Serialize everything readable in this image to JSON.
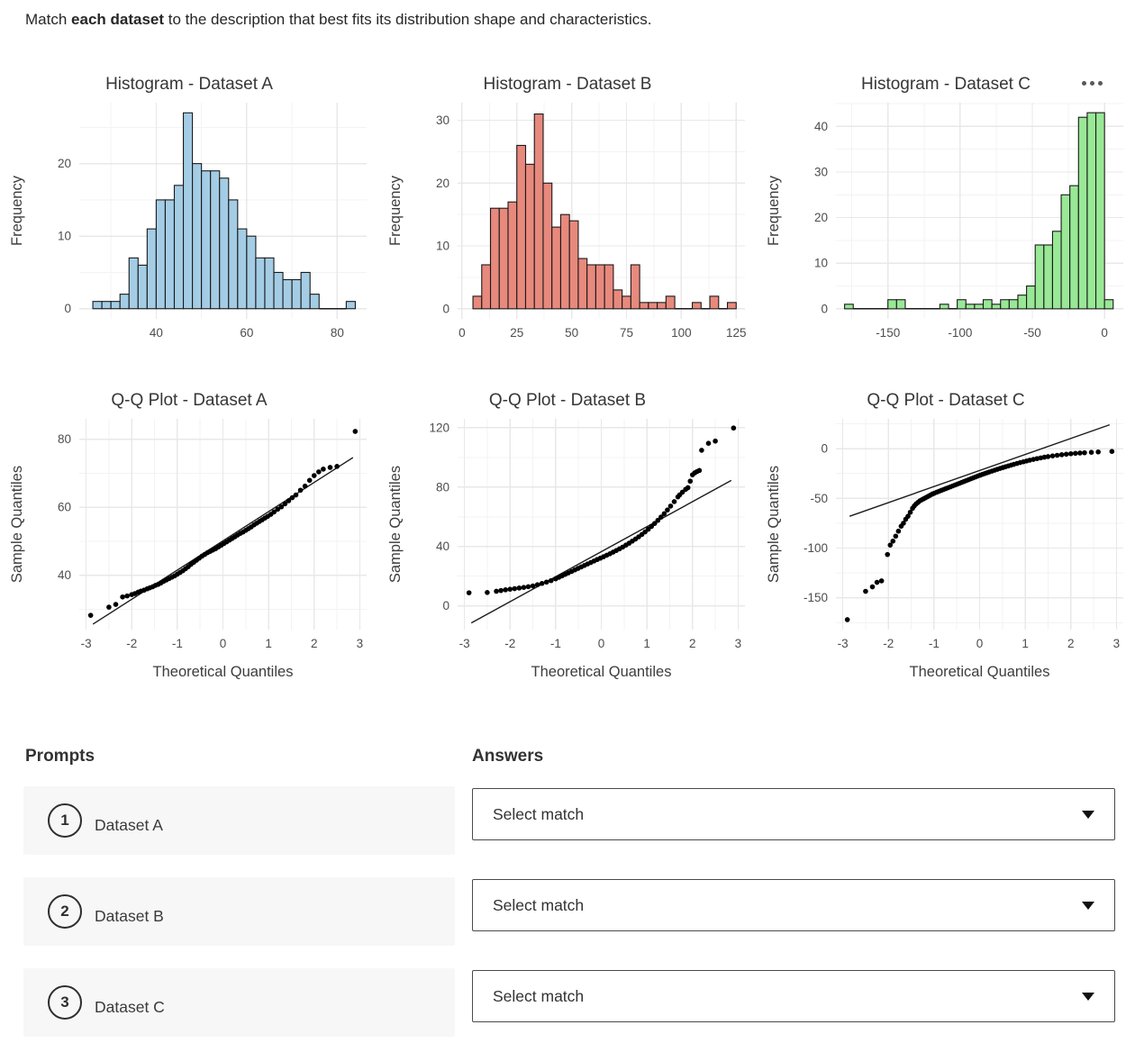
{
  "instruction": {
    "prefix": "Match ",
    "emphasis": "each dataset",
    "suffix": " to the description that best fits its distribution shape and characteristics."
  },
  "icons": {
    "more_options": "ellipsis-dots",
    "dropdown": "caret-down"
  },
  "colors": {
    "dataset_a_fill": "#a4cde5",
    "dataset_b_fill": "#e8897d",
    "dataset_c_fill": "#99e896",
    "bar_border": "#1a1a1a",
    "grid_major": "#e8e8e8",
    "grid_minor": "#f3f3f3",
    "prompt_row_bg": "#f7f7f7"
  },
  "chart_data": [
    {
      "type": "histogram",
      "title": "Histogram - Dataset A",
      "xlabel": "",
      "ylabel": "Frequency",
      "bar_color": "#a4cde5",
      "bin_start": 26,
      "bin_width": 2,
      "counts": [
        1,
        1,
        1,
        2,
        7,
        6,
        11,
        15,
        15,
        17,
        27,
        20,
        19,
        19,
        18,
        15,
        11,
        10,
        7,
        7,
        5,
        4,
        4,
        5,
        2,
        0,
        0,
        0,
        1
      ],
      "xlim": [
        23,
        86.5
      ],
      "ylim": [
        -1.4,
        28.4
      ],
      "xticks": [
        40,
        60,
        80
      ],
      "xminor": [
        30,
        50,
        70
      ],
      "yticks": [
        0,
        10,
        20
      ],
      "yminor": [
        5,
        15,
        25
      ]
    },
    {
      "type": "histogram",
      "title": "Histogram - Dataset B",
      "xlabel": "",
      "ylabel": "Frequency",
      "bar_color": "#e8897d",
      "bin_start": 5,
      "bin_width": 4,
      "counts": [
        2,
        7,
        16,
        16,
        17,
        26,
        23,
        31,
        20,
        13,
        15,
        14,
        8,
        7,
        7,
        7,
        3,
        2,
        7,
        1,
        1,
        1,
        2,
        0,
        0,
        1,
        0,
        2,
        0,
        1
      ],
      "xlim": [
        -2,
        129
      ],
      "ylim": [
        -1.6,
        32.8
      ],
      "xticks": [
        0,
        25,
        50,
        75,
        100,
        125
      ],
      "xminor": [
        12.5,
        37.5,
        62.5,
        87.5,
        112.5
      ],
      "yticks": [
        0,
        10,
        20,
        30
      ],
      "yminor": [
        5,
        15,
        25
      ]
    },
    {
      "type": "histogram",
      "title": "Histogram - Dataset C",
      "xlabel": "",
      "ylabel": "Frequency",
      "bar_color": "#99e896",
      "bin_start": -180,
      "bin_width": 6,
      "counts": [
        1,
        0,
        0,
        0,
        0,
        2,
        2,
        0,
        0,
        0,
        0,
        1,
        0,
        2,
        1,
        1,
        2,
        1,
        2,
        2,
        3,
        5,
        14,
        14,
        17,
        25,
        27,
        42,
        43,
        43,
        2
      ],
      "xlim": [
        -186,
        13
      ],
      "ylim": [
        -2.2,
        45.2
      ],
      "xticks": [
        -150,
        -100,
        -50,
        0
      ],
      "xminor": [
        -175,
        -125,
        -75,
        -25
      ],
      "yticks": [
        0,
        10,
        20,
        30,
        40
      ],
      "yminor": [
        5,
        15,
        25,
        35,
        45
      ]
    },
    {
      "type": "qq",
      "title": "Q-Q Plot - Dataset A",
      "xlabel": "Theoretical Quantiles",
      "ylabel": "Sample Quantiles",
      "xlim": [
        -3.15,
        3.15
      ],
      "ylim": [
        24,
        86
      ],
      "xticks": [
        -3,
        -2,
        -1,
        0,
        1,
        2,
        3
      ],
      "xminor": [
        -2.5,
        -1.5,
        -0.5,
        0.5,
        1.5,
        2.5
      ],
      "yticks": [
        40,
        60,
        80
      ],
      "yminor": [
        30,
        50,
        70
      ],
      "ref_line": [
        [
          -2.85,
          25.6
        ],
        [
          2.85,
          74.6
        ]
      ],
      "points": [
        [
          -2.9,
          28.2
        ],
        [
          -2.5,
          30.6
        ],
        [
          -2.35,
          31.4
        ],
        [
          -2.2,
          33.6
        ],
        [
          -2.1,
          33.9
        ],
        [
          -2.0,
          34.3
        ],
        [
          -1.93,
          34.6
        ],
        [
          -1.86,
          35.0
        ],
        [
          -1.8,
          35.3
        ],
        [
          -1.73,
          35.6
        ],
        [
          -1.66,
          36.0
        ],
        [
          -1.6,
          36.3
        ],
        [
          -1.54,
          36.6
        ],
        [
          -1.48,
          37.0
        ],
        [
          -1.42,
          37.3
        ],
        [
          -1.36,
          37.7
        ],
        [
          -1.3,
          38.2
        ],
        [
          -1.24,
          38.6
        ],
        [
          -1.18,
          39.0
        ],
        [
          -1.12,
          39.4
        ],
        [
          -1.06,
          39.8
        ],
        [
          -1.0,
          40.3
        ],
        [
          -0.94,
          40.8
        ],
        [
          -0.88,
          41.3
        ],
        [
          -0.82,
          41.9
        ],
        [
          -0.76,
          42.5
        ],
        [
          -0.7,
          43.2
        ],
        [
          -0.64,
          43.8
        ],
        [
          -0.58,
          44.4
        ],
        [
          -0.52,
          45.0
        ],
        [
          -0.46,
          45.6
        ],
        [
          -0.4,
          46.1
        ],
        [
          -0.34,
          46.6
        ],
        [
          -0.28,
          47.0
        ],
        [
          -0.22,
          47.4
        ],
        [
          -0.16,
          47.8
        ],
        [
          -0.1,
          48.3
        ],
        [
          -0.04,
          48.8
        ],
        [
          0.02,
          49.3
        ],
        [
          0.08,
          49.8
        ],
        [
          0.14,
          50.3
        ],
        [
          0.2,
          50.8
        ],
        [
          0.26,
          51.3
        ],
        [
          0.32,
          51.8
        ],
        [
          0.38,
          52.3
        ],
        [
          0.44,
          52.7
        ],
        [
          0.5,
          53.2
        ],
        [
          0.56,
          53.7
        ],
        [
          0.62,
          54.2
        ],
        [
          0.68,
          54.8
        ],
        [
          0.74,
          55.3
        ],
        [
          0.8,
          55.8
        ],
        [
          0.86,
          56.3
        ],
        [
          0.92,
          56.8
        ],
        [
          0.98,
          57.3
        ],
        [
          1.05,
          57.9
        ],
        [
          1.12,
          58.6
        ],
        [
          1.2,
          59.4
        ],
        [
          1.28,
          60.1
        ],
        [
          1.36,
          61.0
        ],
        [
          1.44,
          61.9
        ],
        [
          1.52,
          62.8
        ],
        [
          1.6,
          63.6
        ],
        [
          1.7,
          65.0
        ],
        [
          1.8,
          66.2
        ],
        [
          1.9,
          67.9
        ],
        [
          2.0,
          69.3
        ],
        [
          2.1,
          70.4
        ],
        [
          2.2,
          71.2
        ],
        [
          2.35,
          71.7
        ],
        [
          2.5,
          72.0
        ],
        [
          2.9,
          82.3
        ]
      ]
    },
    {
      "type": "qq",
      "title": "Q-Q Plot - Dataset B",
      "xlabel": "Theoretical Quantiles",
      "ylabel": "Sample Quantiles",
      "xlim": [
        -3.15,
        3.15
      ],
      "ylim": [
        -16,
        126
      ],
      "xticks": [
        -3,
        -2,
        -1,
        0,
        1,
        2,
        3
      ],
      "xminor": [
        -2.5,
        -1.5,
        -0.5,
        0.5,
        1.5,
        2.5
      ],
      "yticks": [
        0,
        40,
        80,
        120
      ],
      "yminor": [
        20,
        60,
        100
      ],
      "ref_line": [
        [
          -2.85,
          -11.5
        ],
        [
          2.85,
          84.5
        ]
      ],
      "points": [
        [
          -2.9,
          8.8
        ],
        [
          -2.5,
          9.0
        ],
        [
          -2.3,
          9.8
        ],
        [
          -2.2,
          10.3
        ],
        [
          -2.1,
          10.8
        ],
        [
          -2.0,
          11.2
        ],
        [
          -1.9,
          11.6
        ],
        [
          -1.8,
          12.0
        ],
        [
          -1.7,
          12.4
        ],
        [
          -1.6,
          12.9
        ],
        [
          -1.5,
          13.4
        ],
        [
          -1.4,
          14.2
        ],
        [
          -1.3,
          15.1
        ],
        [
          -1.2,
          16.0
        ],
        [
          -1.1,
          17.0
        ],
        [
          -1.0,
          18.2
        ],
        [
          -0.93,
          19.2
        ],
        [
          -0.86,
          20.2
        ],
        [
          -0.79,
          21.2
        ],
        [
          -0.72,
          22.2
        ],
        [
          -0.65,
          23.2
        ],
        [
          -0.58,
          24.2
        ],
        [
          -0.51,
          25.2
        ],
        [
          -0.44,
          26.2
        ],
        [
          -0.37,
          27.2
        ],
        [
          -0.3,
          28.2
        ],
        [
          -0.23,
          29.2
        ],
        [
          -0.16,
          30.2
        ],
        [
          -0.09,
          31.2
        ],
        [
          -0.02,
          32.1
        ],
        [
          0.05,
          33.1
        ],
        [
          0.12,
          34.1
        ],
        [
          0.19,
          35.1
        ],
        [
          0.26,
          36.2
        ],
        [
          0.33,
          37.3
        ],
        [
          0.4,
          38.4
        ],
        [
          0.47,
          39.6
        ],
        [
          0.54,
          40.9
        ],
        [
          0.61,
          42.2
        ],
        [
          0.68,
          43.6
        ],
        [
          0.75,
          45.0
        ],
        [
          0.82,
          46.5
        ],
        [
          0.89,
          48.1
        ],
        [
          0.96,
          49.8
        ],
        [
          1.03,
          51.6
        ],
        [
          1.1,
          53.5
        ],
        [
          1.17,
          55.5
        ],
        [
          1.24,
          57.6
        ],
        [
          1.31,
          59.8
        ],
        [
          1.38,
          62.1
        ],
        [
          1.45,
          64.6
        ],
        [
          1.52,
          67.2
        ],
        [
          1.6,
          70.2
        ],
        [
          1.68,
          73.4
        ],
        [
          1.72,
          74.8
        ],
        [
          1.78,
          76.6
        ],
        [
          1.85,
          78.5
        ],
        [
          1.9,
          79.6
        ],
        [
          1.95,
          84.0
        ],
        [
          2.0,
          88.3
        ],
        [
          2.05,
          89.6
        ],
        [
          2.1,
          90.5
        ],
        [
          2.15,
          91.2
        ],
        [
          2.2,
          104.8
        ],
        [
          2.35,
          109.5
        ],
        [
          2.5,
          111.0
        ],
        [
          2.9,
          119.8
        ]
      ]
    },
    {
      "type": "qq",
      "title": "Q-Q Plot - Dataset C",
      "xlabel": "Theoretical Quantiles",
      "ylabel": "Sample Quantiles",
      "xlim": [
        -3.15,
        3.15
      ],
      "ylim": [
        -182,
        30
      ],
      "xticks": [
        -3,
        -2,
        -1,
        0,
        1,
        2,
        3
      ],
      "xminor": [
        -2.5,
        -1.5,
        -0.5,
        0.5,
        1.5,
        2.5
      ],
      "yticks": [
        -150,
        -100,
        -50,
        0
      ],
      "yminor": [
        -175,
        -125,
        -75,
        -25,
        25
      ],
      "ref_line": [
        [
          -2.85,
          -68
        ],
        [
          2.85,
          24
        ]
      ],
      "points": [
        [
          -2.9,
          -172
        ],
        [
          -2.5,
          -143.5
        ],
        [
          -2.35,
          -139
        ],
        [
          -2.25,
          -134.5
        ],
        [
          -2.15,
          -133
        ],
        [
          -2.02,
          -106.5
        ],
        [
          -1.96,
          -97
        ],
        [
          -1.9,
          -93
        ],
        [
          -1.84,
          -88
        ],
        [
          -1.78,
          -83
        ],
        [
          -1.72,
          -78
        ],
        [
          -1.67,
          -75
        ],
        [
          -1.62,
          -71
        ],
        [
          -1.57,
          -68
        ],
        [
          -1.52,
          -64
        ],
        [
          -1.47,
          -60
        ],
        [
          -1.43,
          -57.5
        ],
        [
          -1.39,
          -55.5
        ],
        [
          -1.35,
          -54
        ],
        [
          -1.31,
          -52.5
        ],
        [
          -1.27,
          -51.5
        ],
        [
          -1.23,
          -50.5
        ],
        [
          -1.19,
          -49.5
        ],
        [
          -1.15,
          -48.5
        ],
        [
          -1.11,
          -47.5
        ],
        [
          -1.07,
          -46.5
        ],
        [
          -1.03,
          -45.5
        ],
        [
          -0.99,
          -44.8
        ],
        [
          -0.94,
          -43.8
        ],
        [
          -0.89,
          -42.9
        ],
        [
          -0.84,
          -42.0
        ],
        [
          -0.79,
          -41.1
        ],
        [
          -0.74,
          -40.2
        ],
        [
          -0.69,
          -39.3
        ],
        [
          -0.64,
          -38.4
        ],
        [
          -0.59,
          -37.5
        ],
        [
          -0.54,
          -36.6
        ],
        [
          -0.49,
          -35.7
        ],
        [
          -0.44,
          -34.8
        ],
        [
          -0.39,
          -33.9
        ],
        [
          -0.34,
          -33.0
        ],
        [
          -0.29,
          -32.1
        ],
        [
          -0.24,
          -31.2
        ],
        [
          -0.19,
          -30.3
        ],
        [
          -0.14,
          -29.4
        ],
        [
          -0.09,
          -28.5
        ],
        [
          -0.04,
          -27.6
        ],
        [
          0.01,
          -26.7
        ],
        [
          0.06,
          -25.9
        ],
        [
          0.11,
          -25.1
        ],
        [
          0.16,
          -24.3
        ],
        [
          0.21,
          -23.5
        ],
        [
          0.27,
          -22.6
        ],
        [
          0.33,
          -21.7
        ],
        [
          0.39,
          -20.8
        ],
        [
          0.45,
          -19.9
        ],
        [
          0.51,
          -19.0
        ],
        [
          0.57,
          -18.2
        ],
        [
          0.63,
          -17.4
        ],
        [
          0.69,
          -16.6
        ],
        [
          0.75,
          -15.8
        ],
        [
          0.82,
          -14.9
        ],
        [
          0.89,
          -14.0
        ],
        [
          0.96,
          -13.2
        ],
        [
          1.03,
          -12.4
        ],
        [
          1.1,
          -11.6
        ],
        [
          1.18,
          -10.8
        ],
        [
          1.26,
          -10.0
        ],
        [
          1.34,
          -9.3
        ],
        [
          1.42,
          -8.6
        ],
        [
          1.5,
          -8.0
        ],
        [
          1.6,
          -7.3
        ],
        [
          1.7,
          -6.7
        ],
        [
          1.8,
          -6.1
        ],
        [
          1.9,
          -5.6
        ],
        [
          2.0,
          -5.1
        ],
        [
          2.1,
          -4.7
        ],
        [
          2.2,
          -4.4
        ],
        [
          2.3,
          -4.1
        ],
        [
          2.45,
          -3.7
        ],
        [
          2.6,
          -3.3
        ],
        [
          2.9,
          -2.8
        ]
      ]
    }
  ],
  "matching": {
    "prompts_header": "Prompts",
    "answers_header": "Answers",
    "prompts": [
      {
        "number": "1",
        "label": "Dataset A"
      },
      {
        "number": "2",
        "label": "Dataset B"
      },
      {
        "number": "3",
        "label": "Dataset C"
      }
    ],
    "answers": [
      {
        "value": "Select match"
      },
      {
        "value": "Select match"
      },
      {
        "value": "Select match"
      }
    ]
  }
}
